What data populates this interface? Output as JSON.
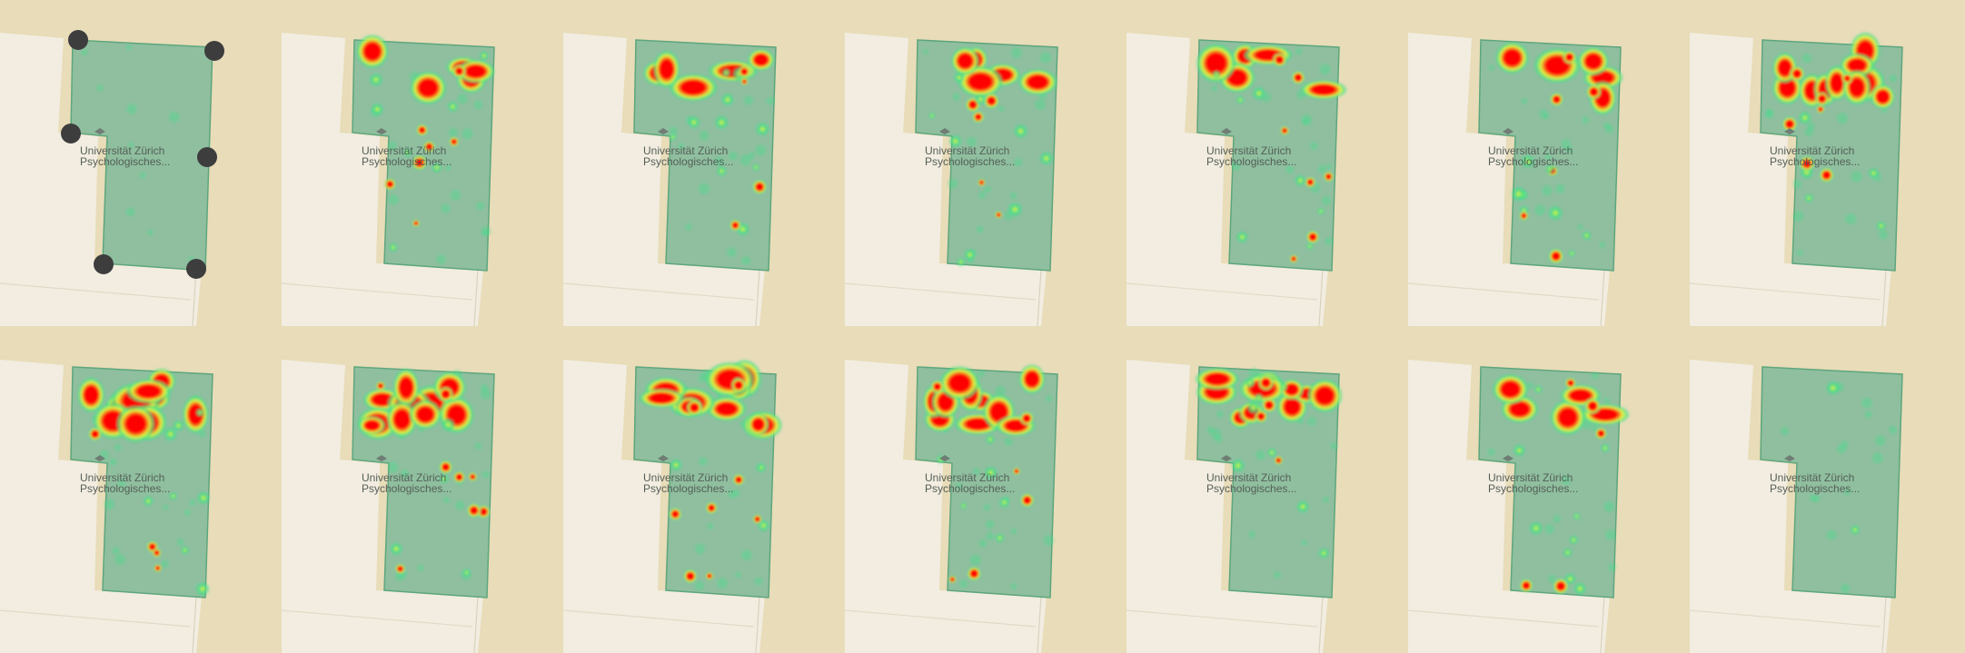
{
  "map": {
    "place_label": [
      "Universität Zürich",
      "Psychologisches..."
    ],
    "colors": {
      "background_land": "#e8dcb9",
      "neighbor_land": "#f2ede0",
      "building_fill": "#8fbf9f",
      "building_stroke": "#5ea67c",
      "heat_low": "#3ee08a",
      "heat_mid": "#e8f53a",
      "heat_high": "#ff0000",
      "vertex_handle": "#3d3d3d"
    }
  },
  "panels": [
    {
      "id": 1,
      "mode": "polygon-editor",
      "vertex_handles": 6,
      "density": "none"
    },
    {
      "id": 2,
      "mode": "heatmap",
      "density": "medium"
    },
    {
      "id": 3,
      "mode": "heatmap",
      "density": "medium"
    },
    {
      "id": 4,
      "mode": "heatmap",
      "density": "medium"
    },
    {
      "id": 5,
      "mode": "heatmap",
      "density": "medium"
    },
    {
      "id": 6,
      "mode": "heatmap",
      "density": "medium"
    },
    {
      "id": 7,
      "mode": "heatmap",
      "density": "high"
    },
    {
      "id": 8,
      "mode": "heatmap",
      "density": "high"
    },
    {
      "id": 9,
      "mode": "heatmap",
      "density": "high"
    },
    {
      "id": 10,
      "mode": "heatmap",
      "density": "high"
    },
    {
      "id": 11,
      "mode": "heatmap",
      "density": "high"
    },
    {
      "id": 12,
      "mode": "heatmap",
      "density": "high"
    },
    {
      "id": 13,
      "mode": "heatmap",
      "density": "medium"
    },
    {
      "id": 14,
      "mode": "heatmap",
      "density": "low"
    }
  ]
}
